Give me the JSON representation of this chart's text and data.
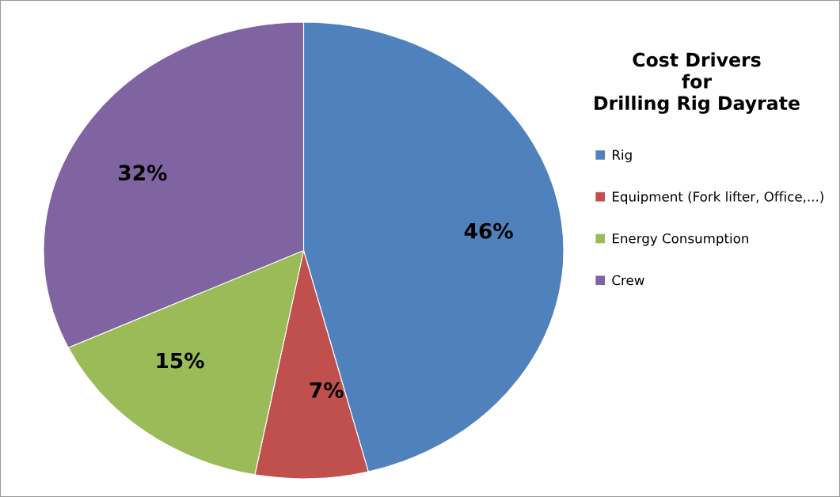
{
  "chart_data": {
    "type": "pie",
    "title": "Cost Drivers\nfor\nDrilling Rig Dayrate",
    "categories": [
      "Rig",
      "Equipment (Fork lifter, Office,...)",
      "Energy Consumption",
      "Crew"
    ],
    "values": [
      46,
      7,
      15,
      32
    ],
    "colors": [
      "#4f81bd",
      "#c0504d",
      "#9bbb59",
      "#8064a2"
    ],
    "value_labels": [
      "46%",
      "7%",
      "15%",
      "32%"
    ],
    "legend": "right"
  }
}
